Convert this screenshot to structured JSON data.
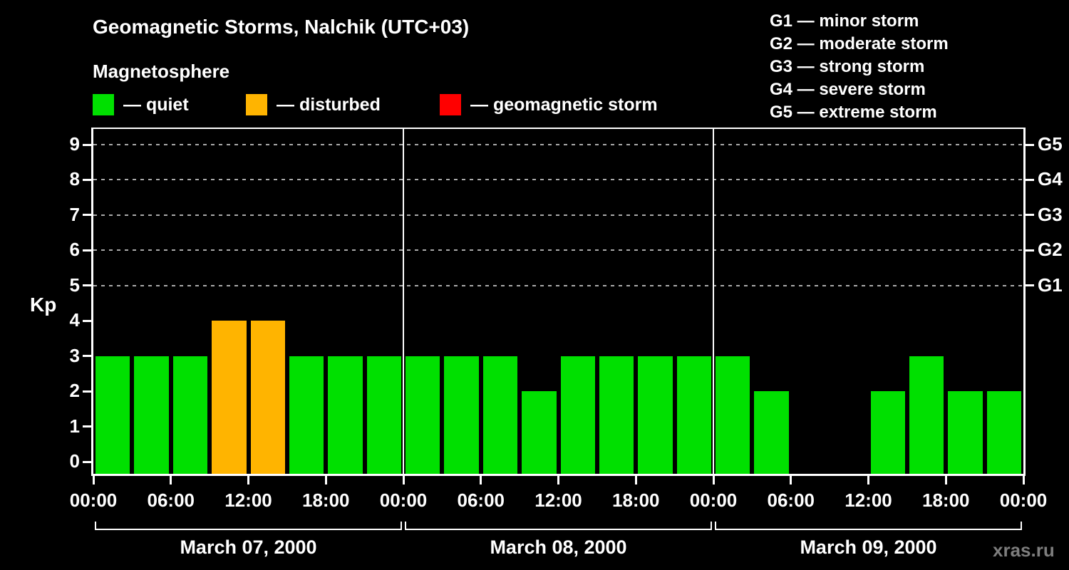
{
  "title": "Geomagnetic Storms, Nalchik (UTC+03)",
  "subtitle": "Magnetosphere",
  "legend": {
    "quiet": "— quiet",
    "disturbed": "— disturbed",
    "storm": "— geomagnetic storm"
  },
  "g_legend": [
    "G1 — minor storm",
    "G2 — moderate storm",
    "G3 — strong storm",
    "G4 — severe storm",
    "G5 — extreme storm"
  ],
  "colors": {
    "quiet": "#00e000",
    "disturbed": "#ffb400",
    "storm": "#ff0000",
    "background": "#000000",
    "text": "#ffffff",
    "grid": "#aaaaaa",
    "watermark": "#7d7d7d"
  },
  "watermark": "xras.ru",
  "chart_data": {
    "type": "bar",
    "title": "Geomagnetic Storms, Nalchik (UTC+03)",
    "subtitle": "Magnetosphere",
    "ylabel": "Kp",
    "ylim": [
      0,
      9
    ],
    "y_ticks": [
      "0",
      "1",
      "2",
      "3",
      "4",
      "5",
      "6",
      "7",
      "8",
      "9"
    ],
    "right_ticks": [
      {
        "label": "G1",
        "kp": 5
      },
      {
        "label": "G2",
        "kp": 6
      },
      {
        "label": "G3",
        "kp": 7
      },
      {
        "label": "G4",
        "kp": 8
      },
      {
        "label": "G5",
        "kp": 9
      }
    ],
    "grid": "dashed horizontal lines at Kp 5-9",
    "x_tick_labels": [
      "00:00",
      "06:00",
      "12:00",
      "18:00",
      "00:00",
      "06:00",
      "12:00",
      "18:00",
      "00:00",
      "06:00",
      "12:00",
      "18:00",
      "00:00"
    ],
    "interval_hours": 3,
    "thresholds": {
      "disturbed": 4,
      "storm": 5
    },
    "days": [
      {
        "label": "March 07, 2000",
        "values": [
          3,
          3,
          3,
          4,
          4,
          3,
          3,
          3
        ]
      },
      {
        "label": "March 08, 2000",
        "values": [
          3,
          3,
          3,
          2,
          3,
          3,
          3,
          3
        ]
      },
      {
        "label": "March 09, 2000",
        "values": [
          3,
          2,
          0,
          0,
          2,
          3,
          2,
          2
        ]
      }
    ]
  }
}
